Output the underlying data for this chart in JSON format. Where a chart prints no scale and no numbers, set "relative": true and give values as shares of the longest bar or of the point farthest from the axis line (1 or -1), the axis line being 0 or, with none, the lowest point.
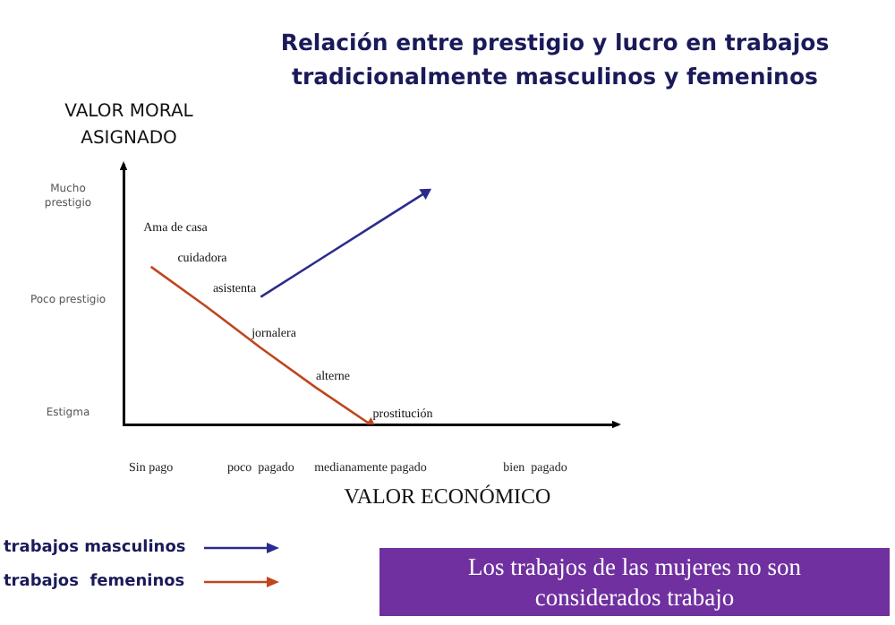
{
  "chart_data": {
    "type": "line",
    "title": "Relación entre prestigio y lucro en trabajos tradicionalmente masculinos y femeninos",
    "xlabel": "VALOR ECONÓMICO",
    "ylabel": "VALOR MORAL ASIGNADO",
    "categories": [
      "Sin pago",
      null,
      "poco  pagado",
      null,
      "medianamente pagado",
      null,
      null,
      "bien  pagado",
      null
    ],
    "relative": true,
    "series": [
      {
        "name": "trabajos masculinos",
        "color": "#2b2b8f",
        "values": [
          null,
          null,
          0.55,
          0.7,
          0.85,
          1,
          null,
          null,
          null
        ]
      },
      {
        "name": "trabajos  femeninos",
        "color": "#c0461e",
        "values": [
          0.68,
          0.51,
          0.33,
          0.16,
          0,
          null,
          null,
          null,
          null
        ]
      }
    ],
    "annotations": [
      "Ama de casa",
      "cuidadora",
      "asistenta",
      "jornalera",
      "alterne",
      "prostitución",
      "Mucho prestigio",
      "Poco prestigio",
      "Estigma",
      "Los trabajos de las mujeres no son considerados trabajo"
    ],
    "legend": "bottom left",
    "grid": false,
    "marker": "none",
    "line_style": "solid"
  }
}
